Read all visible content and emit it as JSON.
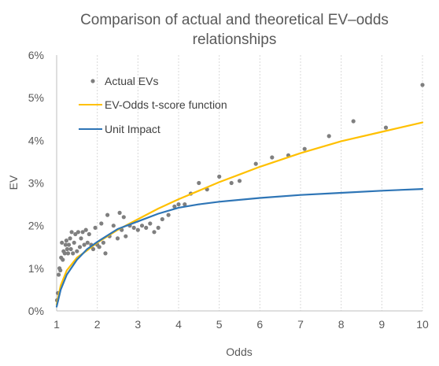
{
  "chart_data": {
    "type": "scatter",
    "title_lines": [
      "Comparison of actual and theoretical EV–odds",
      "relationships"
    ],
    "xlabel": "Odds",
    "ylabel": "EV",
    "xlim": [
      1,
      10
    ],
    "ylim": [
      0,
      6
    ],
    "x_ticks": [
      1,
      2,
      3,
      4,
      5,
      6,
      7,
      8,
      9,
      10
    ],
    "x_tick_labels": [
      "1",
      "2",
      "3",
      "4",
      "5",
      "6",
      "7",
      "8",
      "9",
      "10"
    ],
    "y_ticks": [
      0,
      1,
      2,
      3,
      4,
      5,
      6
    ],
    "y_tick_labels": [
      "0%",
      "1%",
      "2%",
      "3%",
      "4%",
      "5%",
      "6%"
    ],
    "grid": "vertical dotted",
    "legend_position": "top-left",
    "series": [
      {
        "name": "Actual EVs",
        "kind": "scatter",
        "color": "#7f7f7f",
        "points": [
          [
            1.01,
            0.25
          ],
          [
            1.03,
            0.42
          ],
          [
            1.05,
            0.85
          ],
          [
            1.07,
            1.0
          ],
          [
            1.09,
            0.95
          ],
          [
            1.11,
            1.25
          ],
          [
            1.13,
            1.6
          ],
          [
            1.15,
            1.2
          ],
          [
            1.17,
            1.4
          ],
          [
            1.2,
            1.35
          ],
          [
            1.22,
            1.55
          ],
          [
            1.24,
            1.65
          ],
          [
            1.26,
            1.45
          ],
          [
            1.28,
            1.35
          ],
          [
            1.3,
            1.55
          ],
          [
            1.33,
            1.7
          ],
          [
            1.35,
            1.45
          ],
          [
            1.37,
            1.85
          ],
          [
            1.4,
            1.35
          ],
          [
            1.43,
            1.6
          ],
          [
            1.46,
            1.8
          ],
          [
            1.5,
            1.4
          ],
          [
            1.53,
            1.85
          ],
          [
            1.57,
            1.5
          ],
          [
            1.6,
            1.7
          ],
          [
            1.64,
            1.85
          ],
          [
            1.68,
            1.55
          ],
          [
            1.72,
            1.9
          ],
          [
            1.76,
            1.6
          ],
          [
            1.8,
            1.8
          ],
          [
            1.85,
            1.55
          ],
          [
            1.9,
            1.45
          ],
          [
            1.95,
            1.95
          ],
          [
            2.0,
            1.55
          ],
          [
            2.05,
            1.5
          ],
          [
            2.1,
            2.05
          ],
          [
            2.15,
            1.6
          ],
          [
            2.2,
            1.35
          ],
          [
            2.25,
            2.25
          ],
          [
            2.3,
            1.75
          ],
          [
            2.4,
            2.0
          ],
          [
            2.5,
            1.7
          ],
          [
            2.55,
            2.3
          ],
          [
            2.6,
            1.9
          ],
          [
            2.65,
            2.2
          ],
          [
            2.7,
            1.75
          ],
          [
            2.8,
            2.0
          ],
          [
            2.9,
            1.95
          ],
          [
            3.0,
            1.9
          ],
          [
            3.1,
            2.0
          ],
          [
            3.2,
            1.95
          ],
          [
            3.3,
            2.05
          ],
          [
            3.4,
            1.85
          ],
          [
            3.5,
            1.95
          ],
          [
            3.6,
            2.15
          ],
          [
            3.75,
            2.25
          ],
          [
            3.9,
            2.45
          ],
          [
            4.0,
            2.5
          ],
          [
            4.15,
            2.5
          ],
          [
            4.3,
            2.75
          ],
          [
            4.5,
            3.0
          ],
          [
            4.7,
            2.85
          ],
          [
            5.0,
            3.15
          ],
          [
            5.3,
            3.0
          ],
          [
            5.5,
            3.05
          ],
          [
            5.9,
            3.45
          ],
          [
            6.3,
            3.6
          ],
          [
            6.7,
            3.65
          ],
          [
            7.1,
            3.8
          ],
          [
            7.7,
            4.1
          ],
          [
            8.3,
            4.45
          ],
          [
            9.1,
            4.3
          ],
          [
            10.0,
            5.3
          ]
        ]
      },
      {
        "name": "EV-Odds t-score function",
        "kind": "line",
        "color": "#ffc000",
        "points": [
          [
            1.0,
            0.15
          ],
          [
            1.1,
            0.6
          ],
          [
            1.25,
            0.95
          ],
          [
            1.5,
            1.25
          ],
          [
            1.75,
            1.42
          ],
          [
            2.0,
            1.6
          ],
          [
            2.5,
            1.9
          ],
          [
            3.0,
            2.15
          ],
          [
            3.5,
            2.4
          ],
          [
            4.0,
            2.62
          ],
          [
            4.5,
            2.82
          ],
          [
            5.0,
            3.02
          ],
          [
            5.5,
            3.2
          ],
          [
            6.0,
            3.38
          ],
          [
            7.0,
            3.7
          ],
          [
            8.0,
            3.98
          ],
          [
            9.0,
            4.2
          ],
          [
            10.0,
            4.42
          ]
        ]
      },
      {
        "name": "Unit Impact",
        "kind": "line",
        "color": "#2e75b6",
        "points": [
          [
            1.0,
            0.1
          ],
          [
            1.1,
            0.5
          ],
          [
            1.25,
            0.85
          ],
          [
            1.5,
            1.2
          ],
          [
            1.75,
            1.45
          ],
          [
            2.0,
            1.62
          ],
          [
            2.5,
            1.92
          ],
          [
            3.0,
            2.1
          ],
          [
            3.5,
            2.28
          ],
          [
            4.0,
            2.42
          ],
          [
            4.5,
            2.5
          ],
          [
            5.0,
            2.56
          ],
          [
            6.0,
            2.65
          ],
          [
            7.0,
            2.72
          ],
          [
            8.0,
            2.77
          ],
          [
            9.0,
            2.82
          ],
          [
            10.0,
            2.86
          ]
        ]
      }
    ]
  }
}
